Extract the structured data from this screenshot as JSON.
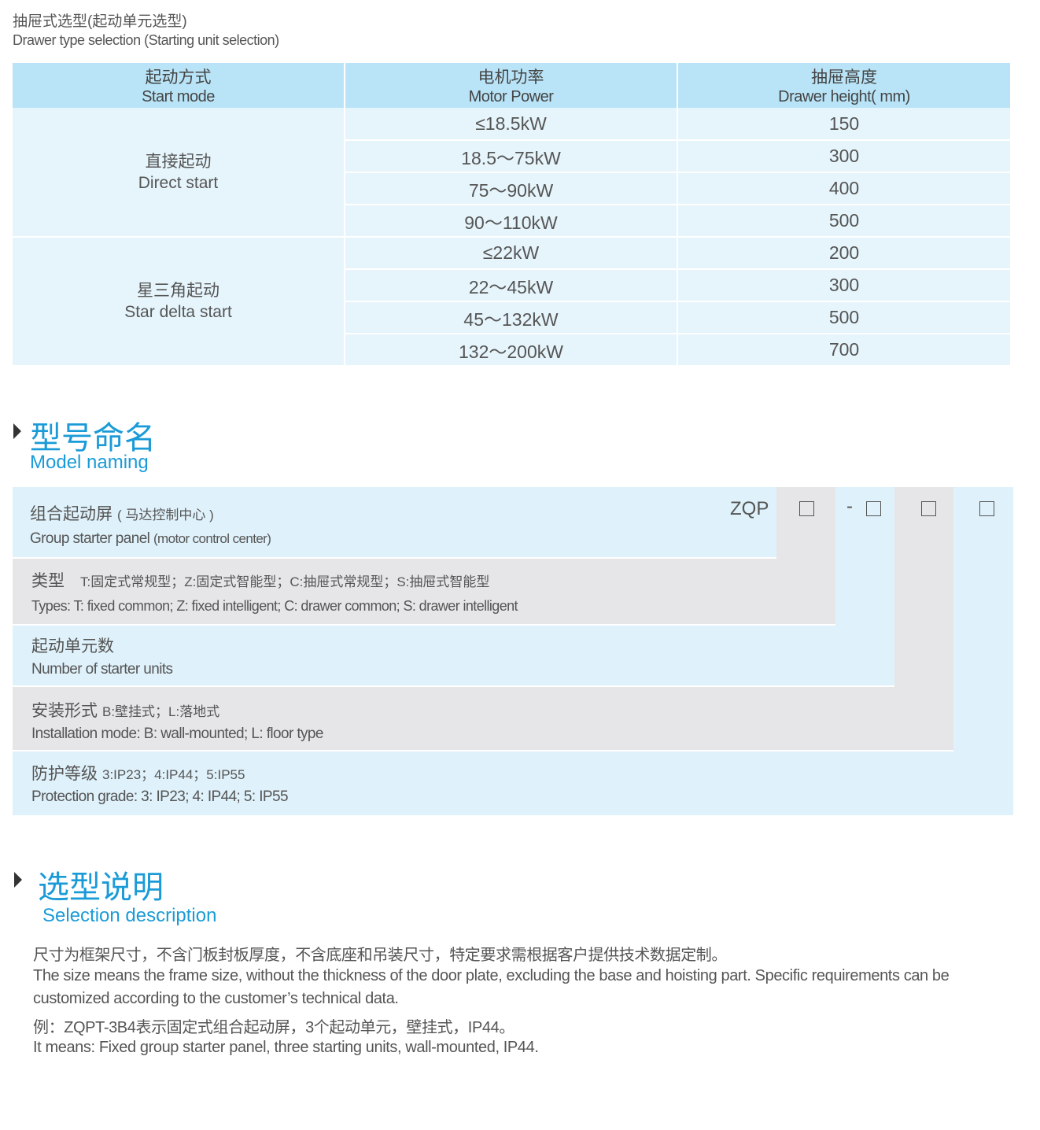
{
  "section1": {
    "title_cn": "抽屉式选型(起动单元选型)",
    "title_en": "Drawer type selection (Starting unit selection)"
  },
  "table": {
    "headers": [
      {
        "cn": "起动方式",
        "en": "Start mode"
      },
      {
        "cn": "电机功率",
        "en": "Motor Power"
      },
      {
        "cn": "抽屉高度",
        "en": "Drawer height( mm)"
      }
    ],
    "groups": [
      {
        "cn": "直接起动",
        "en": "Direct start",
        "rows": [
          [
            "≤18.5kW",
            "150"
          ],
          [
            "18.5～75kW",
            "300"
          ],
          [
            "75～90kW",
            "400"
          ],
          [
            "90～110kW",
            "500"
          ]
        ]
      },
      {
        "cn": "星三角起动",
        "en": "Star delta start",
        "rows": [
          [
            "≤22kW",
            "200"
          ],
          [
            "22～45kW",
            "300"
          ],
          [
            "45～132kW",
            "500"
          ],
          [
            "132～200kW",
            "700"
          ]
        ]
      }
    ]
  },
  "naming": {
    "title_cn": "型号命名",
    "title_en": "Model naming",
    "prefix": "ZQP",
    "dash": "-",
    "rows": [
      {
        "cn": "组合起动屏",
        "cn_note": "( 马达控制中心 )",
        "en": "Group starter panel",
        "en_note": "(motor control center)"
      },
      {
        "cn": "类型",
        "cn_note": "T:固定式常规型；Z:固定式智能型；C:抽屉式常规型；S:抽屉式智能型",
        "en": "Types: T: fixed common; Z: fixed intelligent; C: drawer common; S: drawer intelligent"
      },
      {
        "cn": "起动单元数",
        "en": "Number of starter units"
      },
      {
        "cn": "安装形式",
        "cn_note": "B:壁挂式；L:落地式",
        "en": "Installation mode: B: wall-mounted; L: floor type"
      },
      {
        "cn": "防护等级",
        "cn_note": "3:IP23；4:IP44；5:IP55",
        "en": "Protection grade:  3: IP23; 4: IP44; 5: IP55"
      }
    ]
  },
  "selection": {
    "title_cn": "选型说明",
    "title_en": "Selection description",
    "lines": [
      "尺寸为框架尺寸，不含门板封板厚度，不含底座和吊装尺寸，特定要求需根据客户提供技术数据定制。",
      "The size means the frame size, without the thickness of the door plate, excluding the base and hoisting part. Specific requirements can be",
      "customized according to the customer’s technical data.",
      "例：ZQPT-3B4表示固定式组合起动屏，3个起动单元，壁挂式，IP44。",
      "It means: Fixed group starter panel, three starting units, wall-mounted, IP44."
    ]
  },
  "colors": {
    "accent": "#1a9bd7",
    "header_bg": "#b9e4f7",
    "cell_bg": "#e6f5fc",
    "grey": "#e6e6e8"
  }
}
